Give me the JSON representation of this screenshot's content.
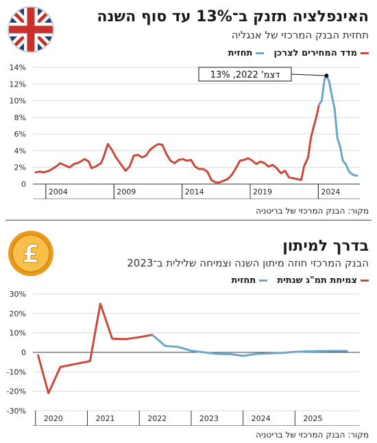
{
  "colors": {
    "actual": "#c9483a",
    "forecast": "#6ba6c9",
    "axis": "#333333",
    "grid": "#d9d9d9",
    "gold": "#f2b233"
  },
  "icons": {
    "top": "uk-flag-icon",
    "bottom": "pound-coin-icon"
  },
  "panel1": {
    "title": "האינפלציה תזנק ב־13% עד סוף השנה",
    "subtitle": "תחזית הבנק המרכזי של אנגליה",
    "legend": {
      "actual": "מדד המחירים לצרכן",
      "forecast": "תחזית"
    },
    "annotation": "דצמ' 2022, 13%",
    "source": "מקור: הבנק המרכזי של בריטניה",
    "chart_data": {
      "type": "line",
      "yticks": [
        "0",
        "2%",
        "4%",
        "6%",
        "8%",
        "10%",
        "12%",
        "14%"
      ],
      "ylim": [
        0,
        14
      ],
      "xticks": [
        "2004",
        "2009",
        "2014",
        "2019",
        "2024"
      ],
      "xlim": [
        2002.8,
        2026.8
      ],
      "grid": true,
      "series": [
        {
          "name": "מדד המחירים לצרכן",
          "points": [
            [
              2003.0,
              1.4
            ],
            [
              2003.3,
              1.5
            ],
            [
              2003.6,
              1.4
            ],
            [
              2004.0,
              1.6
            ],
            [
              2004.5,
              2.1
            ],
            [
              2004.8,
              2.5
            ],
            [
              2005.2,
              2.2
            ],
            [
              2005.5,
              2.0
            ],
            [
              2005.8,
              2.4
            ],
            [
              2006.2,
              2.6
            ],
            [
              2006.6,
              3.0
            ],
            [
              2006.9,
              2.7
            ],
            [
              2007.1,
              1.9
            ],
            [
              2007.4,
              2.1
            ],
            [
              2007.8,
              2.5
            ],
            [
              2008.0,
              3.3
            ],
            [
              2008.3,
              4.8
            ],
            [
              2008.6,
              4.1
            ],
            [
              2008.9,
              3.2
            ],
            [
              2009.2,
              2.5
            ],
            [
              2009.6,
              1.6
            ],
            [
              2009.9,
              2.1
            ],
            [
              2010.2,
              3.4
            ],
            [
              2010.5,
              3.5
            ],
            [
              2010.8,
              3.2
            ],
            [
              2011.1,
              3.4
            ],
            [
              2011.4,
              4.1
            ],
            [
              2011.7,
              4.5
            ],
            [
              2012.0,
              4.8
            ],
            [
              2012.3,
              4.7
            ],
            [
              2012.6,
              3.6
            ],
            [
              2012.9,
              2.8
            ],
            [
              2013.2,
              2.5
            ],
            [
              2013.5,
              2.9
            ],
            [
              2013.8,
              3.0
            ],
            [
              2014.1,
              2.8
            ],
            [
              2014.4,
              2.9
            ],
            [
              2014.7,
              2.1
            ],
            [
              2015.0,
              1.8
            ],
            [
              2015.3,
              1.8
            ],
            [
              2015.6,
              1.5
            ],
            [
              2015.9,
              0.5
            ],
            [
              2016.2,
              0.2
            ],
            [
              2016.5,
              0.2
            ],
            [
              2016.8,
              0.4
            ],
            [
              2017.1,
              0.6
            ],
            [
              2017.4,
              1.1
            ],
            [
              2017.7,
              1.9
            ],
            [
              2018.0,
              2.8
            ],
            [
              2018.3,
              2.9
            ],
            [
              2018.6,
              3.1
            ],
            [
              2018.9,
              2.8
            ],
            [
              2019.2,
              2.4
            ],
            [
              2019.5,
              2.7
            ],
            [
              2019.8,
              2.5
            ],
            [
              2020.1,
              2.1
            ],
            [
              2020.4,
              2.3
            ],
            [
              2020.7,
              1.9
            ],
            [
              2021.0,
              1.3
            ],
            [
              2021.3,
              1.6
            ],
            [
              2021.6,
              0.8
            ],
            [
              2021.9,
              0.7
            ],
            [
              2022.2,
              0.6
            ],
            [
              2022.5,
              0.5
            ],
            [
              2022.7,
              2.1
            ],
            [
              2023.0,
              3.2
            ],
            [
              2023.2,
              5.5
            ],
            [
              2023.4,
              6.8
            ],
            [
              2023.6,
              8.0
            ],
            [
              2023.8,
              9.5
            ]
          ]
        },
        {
          "name": "תחזית",
          "points": [
            [
              2023.8,
              9.5
            ],
            [
              2024.0,
              10.0
            ],
            [
              2024.2,
              12.5
            ],
            [
              2024.35,
              13.0
            ],
            [
              2024.55,
              12.3
            ],
            [
              2024.75,
              10.5
            ],
            [
              2024.95,
              9.0
            ],
            [
              2025.15,
              5.5
            ],
            [
              2025.35,
              4.5
            ],
            [
              2025.55,
              2.8
            ],
            [
              2025.8,
              2.3
            ],
            [
              2026.0,
              1.5
            ],
            [
              2026.3,
              1.1
            ],
            [
              2026.6,
              1.0
            ]
          ]
        }
      ],
      "marker": [
        2024.35,
        13.0
      ]
    }
  },
  "panel2": {
    "title": "בדרך למיתון",
    "subtitle": "הבנק המרכזי חוזה מיתון השנה וצמיחה שלילית ב־2023",
    "legend": {
      "actual": "צמיחת תמ\"ג שנתית",
      "forecast": "תחזית"
    },
    "source": "מקור: הבנק המרכזי של בריטניה",
    "chart_data": {
      "type": "line",
      "yticks": [
        "-30%",
        "-20%",
        "-10%",
        "0",
        "10%",
        "20%",
        "30%"
      ],
      "ylim": [
        -30,
        30
      ],
      "xticks": [
        "2020",
        "2021",
        "2022",
        "2023",
        "2024",
        "2025"
      ],
      "xlim": [
        2019.45,
        2025.75
      ],
      "grid": true,
      "series": [
        {
          "name": "צמיחת תמ\"ג שנתית",
          "points": [
            [
              2019.55,
              -1.5
            ],
            [
              2019.75,
              -21.0
            ],
            [
              2019.98,
              -7.5
            ],
            [
              2020.55,
              -4.5
            ],
            [
              2020.75,
              25.0
            ],
            [
              2020.98,
              7.0
            ],
            [
              2021.25,
              6.8
            ],
            [
              2021.55,
              8.0
            ],
            [
              2021.75,
              9.0
            ]
          ]
        },
        {
          "name": "תחזית",
          "points": [
            [
              2021.75,
              9.0
            ],
            [
              2022.0,
              3.3
            ],
            [
              2022.25,
              2.8
            ],
            [
              2022.5,
              0.8
            ],
            [
              2023.0,
              -0.8
            ],
            [
              2023.25,
              -0.9
            ],
            [
              2023.5,
              -1.8
            ],
            [
              2023.75,
              -0.8
            ],
            [
              2024.25,
              -0.3
            ],
            [
              2024.5,
              0.3
            ],
            [
              2024.75,
              0.5
            ],
            [
              2025.0,
              0.6
            ],
            [
              2025.25,
              0.7
            ],
            [
              2025.5,
              0.7
            ]
          ]
        }
      ]
    }
  }
}
